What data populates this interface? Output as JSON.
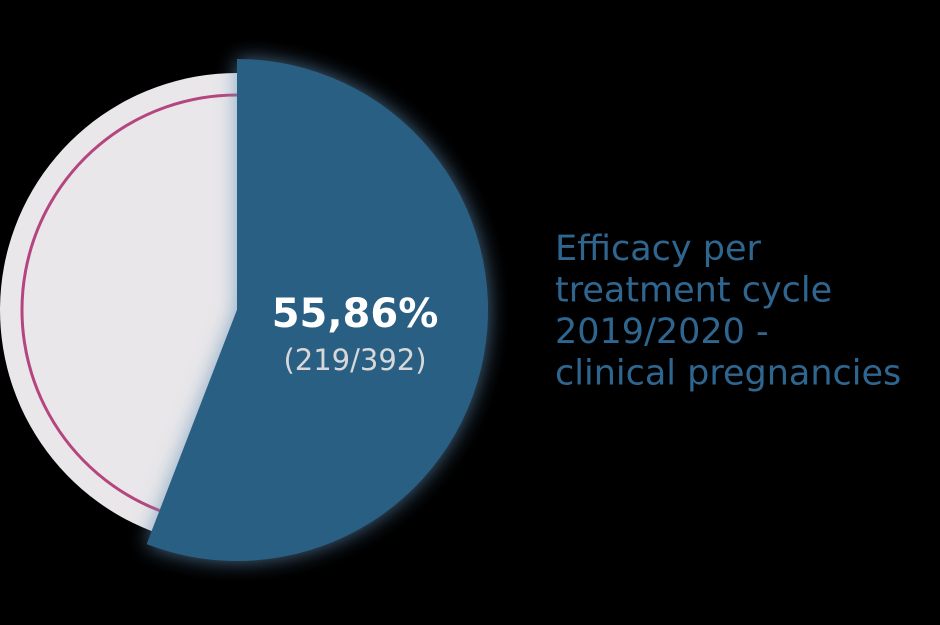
{
  "chart_data": {
    "type": "pie",
    "title": [
      "Efficacy per",
      "treatment cycle",
      "2019/2020 -",
      "clinical pregnancies"
    ],
    "values": [
      55.86,
      44.14
    ],
    "value_labels": [
      "55,86%",
      null
    ],
    "annotation": "(219/392)",
    "colors": [
      "#2a5f84",
      "#e9e7e9"
    ],
    "ring_color": "#b5457f"
  }
}
